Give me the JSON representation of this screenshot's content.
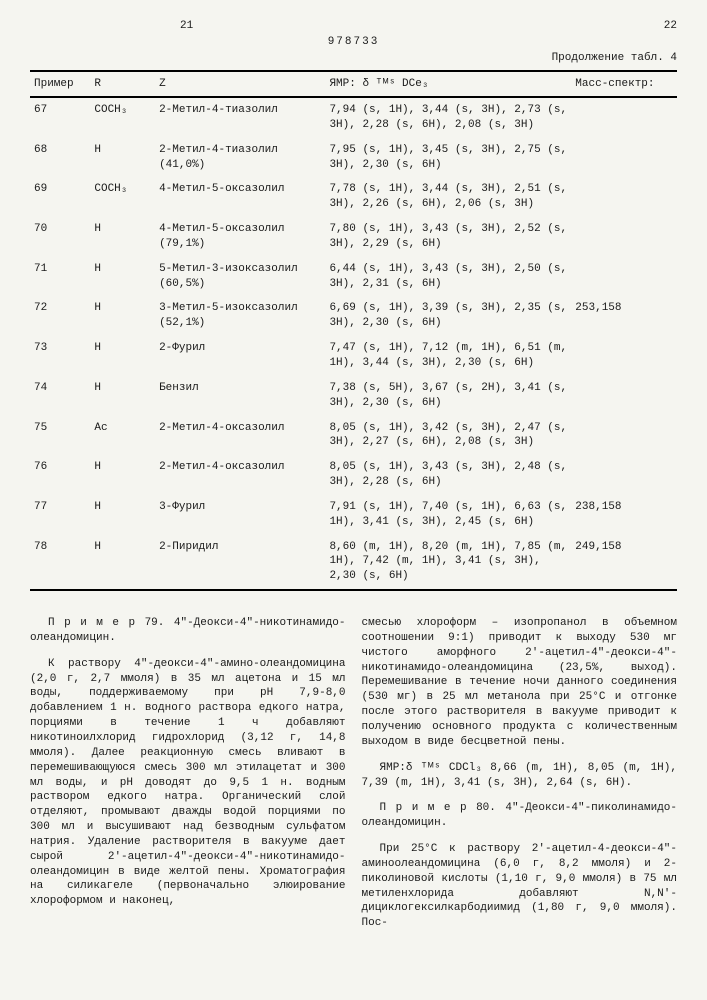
{
  "header": {
    "page_left": "21",
    "page_right": "22",
    "doc_number": "978733",
    "continuation": "Продолжение табл. 4"
  },
  "table": {
    "headers": {
      "example": "Пример",
      "r": "R",
      "z": "Z",
      "nmr": "ЯМР: δ ᵀᴹˢ DCе₃",
      "ms": "Масс-спектр:"
    },
    "rows": [
      {
        "ex": "67",
        "r": "COCH₃",
        "z": "2-Метил-4-тиазолил",
        "nmr": "7,94 (s, 1H), 3,44 (s, 3H), 2,73 (s, 3H), 2,28 (s, 6H), 2,08 (s, 3H)",
        "ms": ""
      },
      {
        "ex": "68",
        "r": "H",
        "z": "2-Метил-4-тиазолил (41,0%)",
        "nmr": "7,95 (s, 1H), 3,45 (s, 3H), 2,75 (s, 3H), 2,30 (s, 6H)",
        "ms": ""
      },
      {
        "ex": "69",
        "r": "COCH₃",
        "z": "4-Метил-5-оксазолил",
        "nmr": "7,78 (s, 1H), 3,44 (s, 3H), 2,51 (s, 3H), 2,26 (s, 6H), 2,06 (s, 3H)",
        "ms": ""
      },
      {
        "ex": "70",
        "r": "H",
        "z": "4-Метил-5-оксазолил (79,1%)",
        "nmr": "7,80 (s, 1H), 3,43 (s, 3H), 2,52 (s, 3H), 2,29 (s, 6H)",
        "ms": ""
      },
      {
        "ex": "71",
        "r": "H",
        "z": "5-Метил-3-изоксазолил (60,5%)",
        "nmr": "6,44 (s, 1H), 3,43 (s, 3H), 2,50 (s, 3H), 2,31 (s, 6H)",
        "ms": ""
      },
      {
        "ex": "72",
        "r": "H",
        "z": "3-Метил-5-изоксазолил (52,1%)",
        "nmr": "6,69 (s, 1H), 3,39 (s, 3H), 2,35 (s, 3H), 2,30 (s, 6H)",
        "ms": "253,158"
      },
      {
        "ex": "73",
        "r": "H",
        "z": "2-Фурил",
        "nmr": "7,47 (s, 1H), 7,12 (m, 1H), 6,51 (m, 1H), 3,44 (s, 3H), 2,30 (s, 6H)",
        "ms": ""
      },
      {
        "ex": "74",
        "r": "H",
        "z": "Бензил",
        "nmr": "7,38 (s, 5H), 3,67 (s, 2H), 3,41 (s, 3H), 2,30 (s, 6H)",
        "ms": ""
      },
      {
        "ex": "75",
        "r": "Ac",
        "z": "2-Метил-4-оксазолил",
        "nmr": "8,05 (s, 1H), 3,42 (s, 3H), 2,47 (s, 3H), 2,27 (s, 6H), 2,08 (s, 3H)",
        "ms": ""
      },
      {
        "ex": "76",
        "r": "H",
        "z": "2-Метил-4-оксазолил",
        "nmr": "8,05 (s, 1H), 3,43 (s, 3H), 2,48 (s, 3H), 2,28 (s, 6H)",
        "ms": ""
      },
      {
        "ex": "77",
        "r": "H",
        "z": "3-Фурил",
        "nmr": "7,91 (s, 1H), 7,40 (s, 1H), 6,63 (s, 1H), 3,41 (s, 3H), 2,45 (s, 6H)",
        "ms": "238,158"
      },
      {
        "ex": "78",
        "r": "H",
        "z": "2-Пиридил",
        "nmr": "8,60 (m, 1H), 8,20 (m, 1H), 7,85 (m, 1H), 7,42 (m, 1H), 3,41 (s, 3H), 2,30 (s, 6H)",
        "ms": "249,158"
      }
    ]
  },
  "body": {
    "left": {
      "p1": "П р и м е р  79. 4″-Деокси-4″-никотинамидо-олеандомицин.",
      "p2": "К раствору 4″-деокси-4″-амино-олеандомицина (2,0 г, 2,7 ммоля) в 35 мл ацетона и 15 мл воды, поддерживаемому при pH 7,9-8,0 добавлением 1 н. водного раствора едкого натра, порциями в течение 1 ч добавляют никотиноилхлорид гидрохлорид (3,12 г, 14,8 ммоля). Далее реакционную смесь вливают в перемешивающуюся смесь 300 мл этилацетат и 300 мл воды, и pH доводят до 9,5 1 н. водным раствором едкого натра. Органический слой отделяют, промывают дважды водой порциями по 300 мл и высушивают над безводным сульфатом натрия. Удаление растворителя в вакууме дает сырой 2′-ацетил-4″-деокси-4″-никотинамидо-олеандомицин в виде желтой пены. Хроматография на силикагеле (первоначально элюирование хлороформом и наконец,"
    },
    "right": {
      "p1": "смесью хлороформ – изопропанол в объемном соотношении 9:1) приводит к выходу 530 мг чистого аморфного 2′-ацетил-4″-деокси-4″-никотинамидо-олеандомицина (23,5%, выход). Перемешивание в течение ночи данного соединения (530 мг) в 25 мл метанола при 25°С и отгонке после этого растворителя в вакууме приводит к получению основного продукта с количественным выходом в виде бесцветной пены.",
      "p2": "ЯМР:δ ᵀᴹˢ CDCl₃ 8,66 (m, 1H), 8,05 (m, 1H), 7,39 (m, 1H), 3,41 (s, 3H), 2,64 (s, 6H).",
      "p3": "П р и м е р  80. 4″-Деокси-4″-пиколинамидо-олеандомицин.",
      "p4": "При 25°С к раствору 2′-ацетил-4-деокси-4″-аминоолеандомицина (6,0 г, 8,2 ммоля) и 2-пиколиновой кислоты (1,10 г, 9,0 ммоля) в 75 мл метиленхлорида добавляют N,N′-дициклогексилкарбодиимид (1,80 г, 9,0 ммоля). Пос-"
    }
  }
}
